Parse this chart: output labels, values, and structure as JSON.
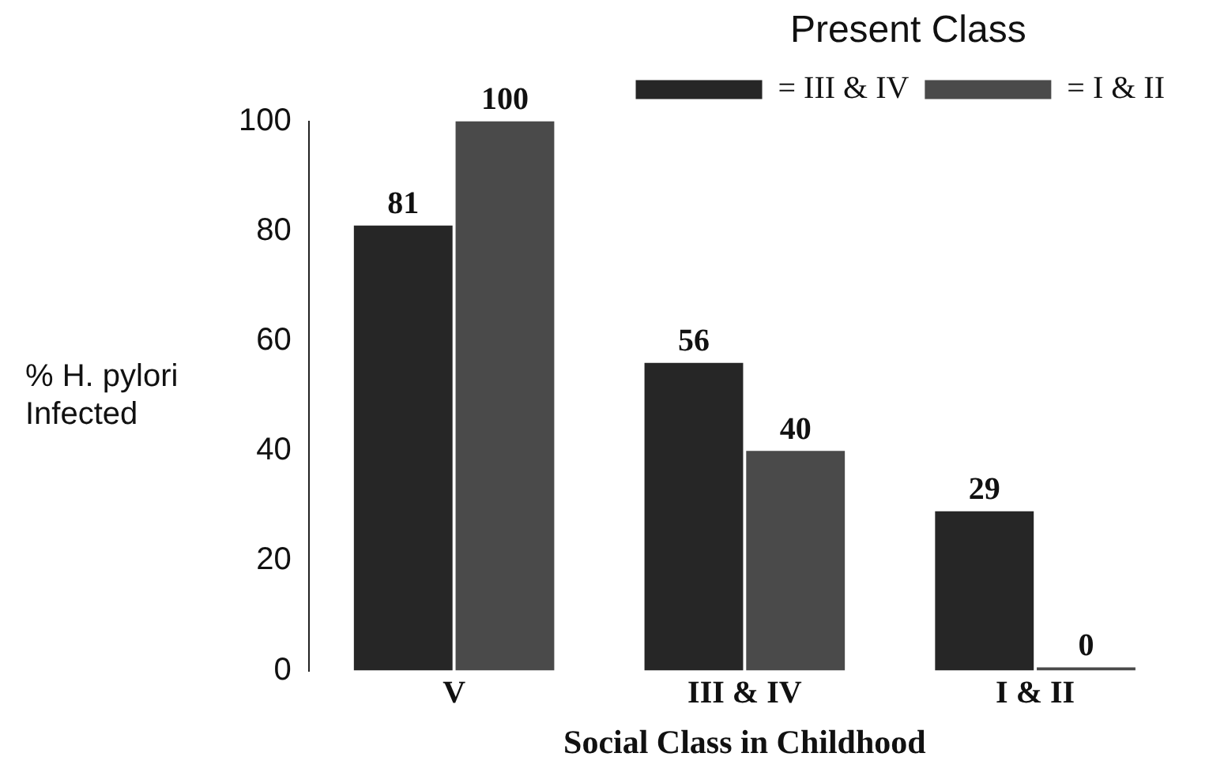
{
  "chart_data": {
    "type": "bar",
    "xlabel": "Social Class in Childhood",
    "ylabel": "% H. pylori Infected",
    "legend_title": "Present Class",
    "categories": [
      "V",
      "III & IV",
      "I & II"
    ],
    "series": [
      {
        "name": "= III & IV",
        "color": "#262626",
        "values": [
          81,
          56,
          29
        ]
      },
      {
        "name": "= I & II",
        "color": "#4a4a4a",
        "values": [
          100,
          40,
          0
        ]
      }
    ],
    "ylim": [
      0,
      100
    ],
    "yticks": [
      0,
      20,
      40,
      60,
      80,
      100
    ],
    "grid": false,
    "legend": "top right",
    "data_labels": true
  }
}
